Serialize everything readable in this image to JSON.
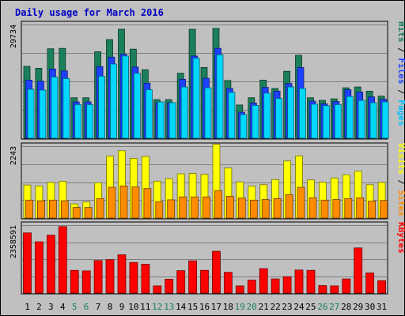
{
  "chart_data": {
    "type": "bar",
    "title": "Daily usage for March 2016",
    "categories": [
      "1",
      "2",
      "3",
      "4",
      "5",
      "6",
      "7",
      "8",
      "9",
      "10",
      "11",
      "12",
      "13",
      "14",
      "15",
      "16",
      "17",
      "18",
      "19",
      "20",
      "21",
      "22",
      "23",
      "24",
      "25",
      "26",
      "27",
      "28",
      "29",
      "30",
      "31"
    ],
    "weekend_days": [
      "5",
      "6",
      "12",
      "13",
      "19",
      "20",
      "26",
      "27"
    ],
    "grid": true,
    "panels": [
      {
        "id": "pages-files-hits",
        "max_label": "29734",
        "ymax": 29734,
        "axis_labels": [
          {
            "text": "Pages",
            "color": "#00bfff"
          },
          {
            "text": "Files",
            "color": "#1e40ff"
          },
          {
            "text": "Hits",
            "color": "#1b7f5a"
          }
        ],
        "series": [
          {
            "name": "Hits",
            "color": "#1b7f5a",
            "values": [
              18800,
              18300,
              23400,
              23500,
              10600,
              10600,
              22600,
              25800,
              28500,
              23300,
              17900,
              10100,
              10100,
              17000,
              28500,
              18500,
              28700,
              15100,
              8700,
              10600,
              15200,
              13000,
              17500,
              21700,
              10600,
              9900,
              10300,
              13200,
              13400,
              12300,
              11000
            ]
          },
          {
            "name": "Files",
            "color": "#1e40ff",
            "values": [
              15200,
              14900,
              18100,
              17600,
              9500,
              9500,
              18700,
              21200,
              22000,
              18600,
              14400,
              9300,
              9300,
              15400,
              21500,
              15700,
              23500,
              13000,
              6800,
              9200,
              13300,
              12300,
              14300,
              18500,
              9700,
              9000,
              9600,
              12700,
              12100,
              10800,
              10200
            ]
          },
          {
            "name": "Pages",
            "color": "#00d8ff",
            "values": [
              12800,
              12600,
              16000,
              15600,
              8800,
              8800,
              16200,
              19400,
              21500,
              17000,
              12700,
              9500,
              9300,
              13400,
              20900,
              13200,
              21800,
              12000,
              6200,
              8600,
              11800,
              10400,
              13400,
              13000,
              8900,
              8500,
              8800,
              10900,
              9900,
              9300,
              9500
            ]
          }
        ]
      },
      {
        "id": "sites-visits",
        "max_label": "2243",
        "ymax": 2243,
        "axis_labels": [
          {
            "text": "Sites",
            "color": "#ff8c00"
          },
          {
            "text": "Visits",
            "color": "#ffff00"
          }
        ],
        "series": [
          {
            "name": "Visits",
            "color": "#ffff00",
            "values": [
              1030,
              1000,
              1110,
              1140,
              440,
              500,
              1100,
              1930,
              2100,
              1860,
              1920,
              1150,
              1230,
              1380,
              1390,
              1360,
              2300,
              1560,
              1130,
              990,
              1040,
              1200,
              1780,
              1940,
              1190,
              1120,
              1250,
              1350,
              1460,
              1040,
              1110
            ]
          },
          {
            "name": "Sites",
            "color": "#ff8c00",
            "values": [
              560,
              540,
              560,
              540,
              330,
              330,
              610,
              960,
              1000,
              970,
              920,
              510,
              570,
              660,
              660,
              660,
              850,
              680,
              620,
              560,
              580,
              610,
              730,
              960,
              630,
              560,
              580,
              610,
              630,
              530,
              550
            ]
          }
        ]
      },
      {
        "id": "kbytes",
        "max_label": "2358591",
        "ymax": 2358591,
        "axis_labels": [
          {
            "text": "KBytes",
            "color": "#ff0000"
          }
        ],
        "series": [
          {
            "name": "KBytes",
            "color": "#ff0000",
            "values": [
              2090000,
              1780000,
              2010000,
              2310000,
              790000,
              770000,
              1130000,
              1160000,
              1330000,
              1060000,
              1000000,
              250000,
              480000,
              780000,
              1120000,
              790000,
              1450000,
              720000,
              250000,
              450000,
              850000,
              490000,
              570000,
              800000,
              790000,
              260000,
              250000,
              490000,
              1570000,
              700000,
              430000
            ]
          }
        ]
      }
    ]
  }
}
